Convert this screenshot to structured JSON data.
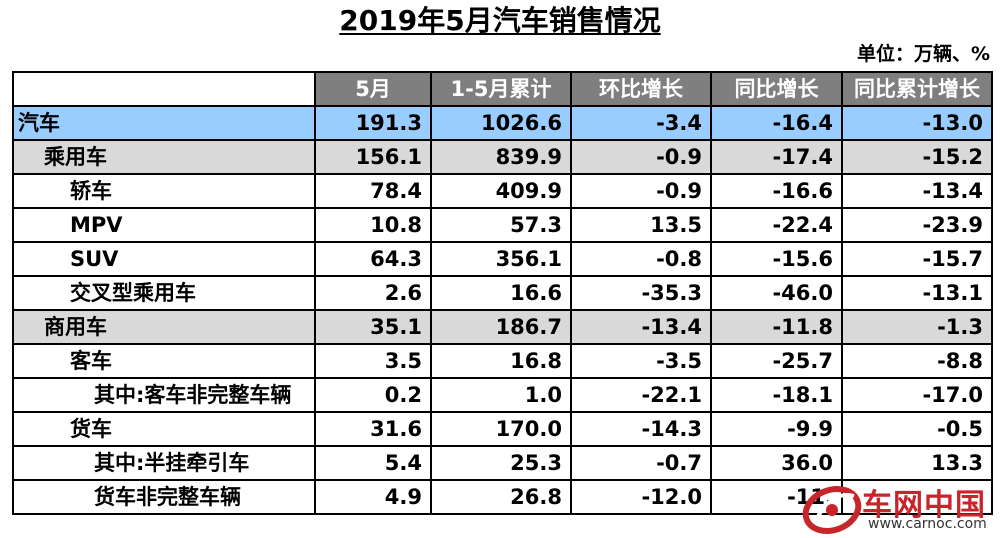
{
  "title": "2019年5月汽车销售情况",
  "unit": "单位：万辆、%",
  "headers": [
    "",
    "5月",
    "1-5月累计",
    "环比增长",
    "同比增长",
    "同比累计增长"
  ],
  "rows": [
    {
      "label": "汽车",
      "v1": "191.3",
      "v2": "1026.6",
      "v3": "-3.4",
      "v4": "-16.4",
      "v5": "-13.0"
    },
    {
      "label": "乘用车",
      "v1": "156.1",
      "v2": "839.9",
      "v3": "-0.9",
      "v4": "-17.4",
      "v5": "-15.2"
    },
    {
      "label": "轿车",
      "v1": "78.4",
      "v2": "409.9",
      "v3": "-0.9",
      "v4": "-16.6",
      "v5": "-13.4"
    },
    {
      "label": "MPV",
      "v1": "10.8",
      "v2": "57.3",
      "v3": "13.5",
      "v4": "-22.4",
      "v5": "-23.9"
    },
    {
      "label": "SUV",
      "v1": "64.3",
      "v2": "356.1",
      "v3": "-0.8",
      "v4": "-15.6",
      "v5": "-15.7"
    },
    {
      "label": "交叉型乘用车",
      "v1": "2.6",
      "v2": "16.6",
      "v3": "-35.3",
      "v4": "-46.0",
      "v5": "-13.1"
    },
    {
      "label": "商用车",
      "v1": "35.1",
      "v2": "186.7",
      "v3": "-13.4",
      "v4": "-11.8",
      "v5": "-1.3"
    },
    {
      "label": "客车",
      "v1": "3.5",
      "v2": "16.8",
      "v3": "-3.5",
      "v4": "-25.7",
      "v5": "-8.8"
    },
    {
      "label": "其中:客车非完整车辆",
      "v1": "0.2",
      "v2": "1.0",
      "v3": "-22.1",
      "v4": "-18.1",
      "v5": "-17.0"
    },
    {
      "label": "货车",
      "v1": "31.6",
      "v2": "170.0",
      "v3": "-14.3",
      "v4": "-9.9",
      "v5": "-0.5"
    },
    {
      "label": "其中:半挂牵引车",
      "v1": "5.4",
      "v2": "25.3",
      "v3": "-0.7",
      "v4": "36.0",
      "v5": "13.3"
    },
    {
      "label": "货车非完整车辆",
      "v1": "4.9",
      "v2": "26.8",
      "v3": "-12.0",
      "v4": "-11.",
      "v5": ""
    }
  ],
  "watermark": {
    "text": "车网中国",
    "url": "www.carnoc.com",
    "logo_color": "#c8252b"
  }
}
